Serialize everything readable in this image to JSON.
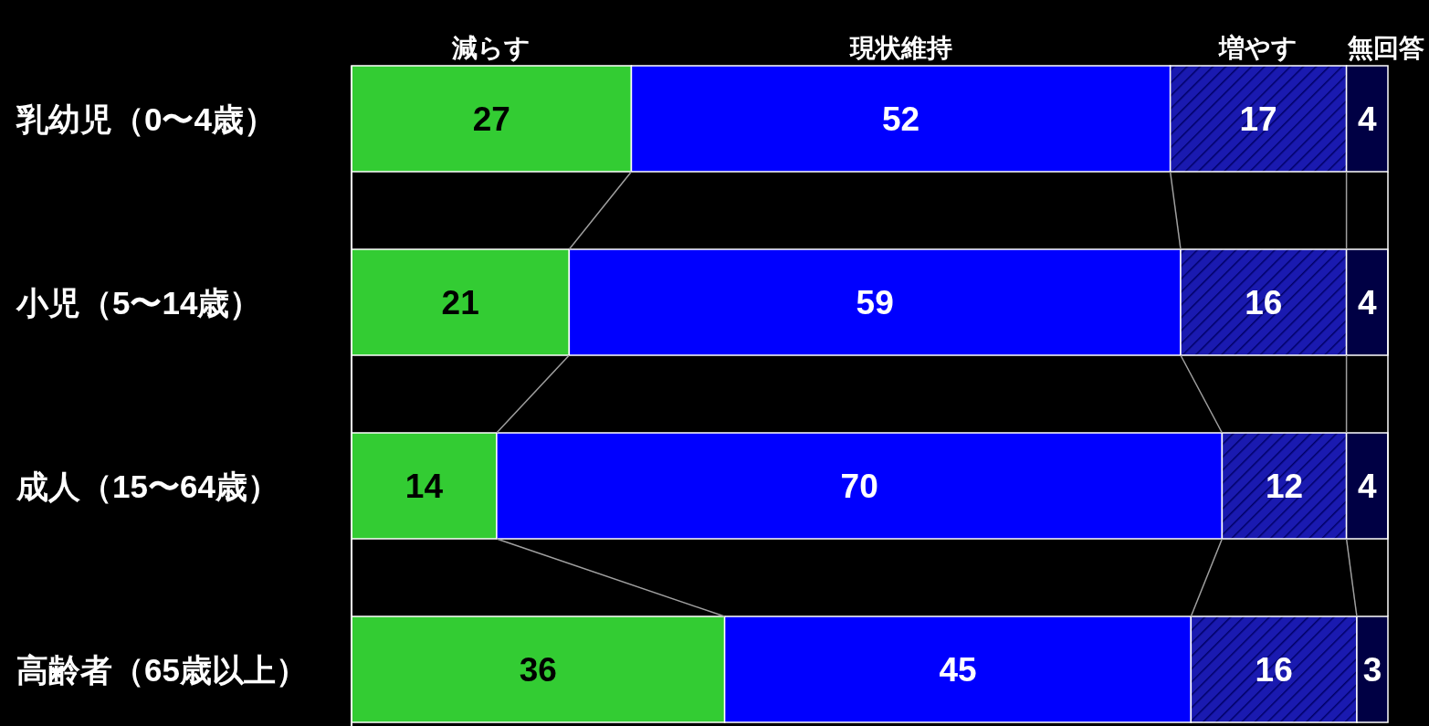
{
  "chart_data": {
    "type": "bar",
    "stacked": true,
    "orientation": "horizontal",
    "xlim": [
      0,
      100
    ],
    "tick_labels": "y",
    "data_labels": true,
    "categories": [
      "乳幼児（0〜4歳）",
      "小児（5〜14歳）",
      "成人（15〜64歳）",
      "高齢者（65歳以上）"
    ],
    "series": [
      {
        "name": "減らす",
        "color": "#33cc33",
        "values": [
          27,
          21,
          14,
          36
        ]
      },
      {
        "name": "現状維持",
        "color": "#0000ff",
        "values": [
          52,
          59,
          70,
          45
        ]
      },
      {
        "name": "増やす",
        "color": "#1a1ab0",
        "values": [
          17,
          16,
          12,
          16
        ]
      },
      {
        "name": "無回答",
        "color": "#000044",
        "values": [
          4,
          4,
          4,
          3
        ]
      }
    ]
  }
}
